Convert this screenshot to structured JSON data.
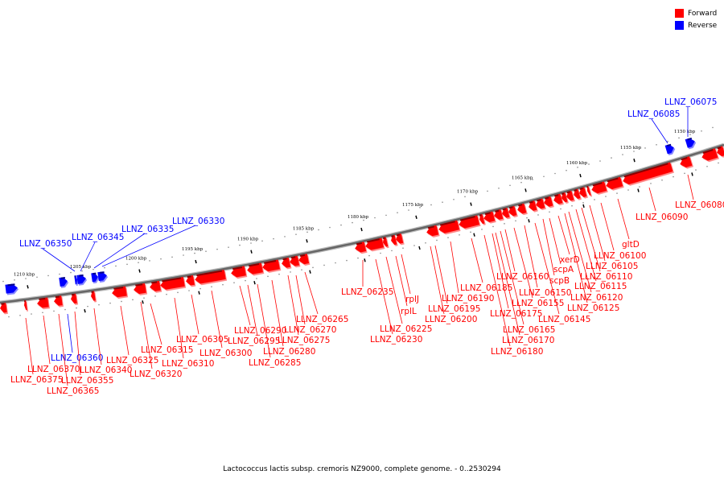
{
  "legend": {
    "forward": {
      "label": "Forward",
      "color": "#ff0000"
    },
    "reverse": {
      "label": "Reverse",
      "color": "#0000ff"
    }
  },
  "footer": "Lactococcus lactis subsp. cremoris NZ9000, complete genome. - 0..2530294",
  "ticks": [
    "1210 kbp",
    "1205 kbp",
    "1200 kbp",
    "1195 kbp",
    "1190 kbp",
    "1185 kbp",
    "1180 kbp",
    "1175 kbp",
    "1170 kbp",
    "1165 kbp",
    "1160 kbp",
    "1155 kbp",
    "1150 kbp"
  ],
  "gene_labels": [
    {
      "text": "LLNZ_06075",
      "strand": "reverse"
    },
    {
      "text": "LLNZ_06085",
      "strand": "reverse"
    },
    {
      "text": "LLNZ_06330",
      "strand": "reverse"
    },
    {
      "text": "LLNZ_06335",
      "strand": "reverse"
    },
    {
      "text": "LLNZ_06345",
      "strand": "reverse"
    },
    {
      "text": "LLNZ_06350",
      "strand": "reverse"
    },
    {
      "text": "LLNZ_06360",
      "strand": "reverse"
    },
    {
      "text": "LLNZ_06370",
      "strand": "forward"
    },
    {
      "text": "LLNZ_06375",
      "strand": "forward"
    },
    {
      "text": "LLNZ_06355",
      "strand": "forward"
    },
    {
      "text": "LLNZ_06365",
      "strand": "forward"
    },
    {
      "text": "LLNZ_06340",
      "strand": "forward"
    },
    {
      "text": "LLNZ_06325",
      "strand": "forward"
    },
    {
      "text": "LLNZ_06320",
      "strand": "forward"
    },
    {
      "text": "LLNZ_06315",
      "strand": "forward"
    },
    {
      "text": "LLNZ_06310",
      "strand": "forward"
    },
    {
      "text": "LLNZ_06305",
      "strand": "forward"
    },
    {
      "text": "LLNZ_06300",
      "strand": "forward"
    },
    {
      "text": "LLNZ_06290",
      "strand": "forward"
    },
    {
      "text": "LLNZ_06295",
      "strand": "forward"
    },
    {
      "text": "LLNZ_06285",
      "strand": "forward"
    },
    {
      "text": "LLNZ_06280",
      "strand": "forward"
    },
    {
      "text": "LLNZ_06275",
      "strand": "forward"
    },
    {
      "text": "LLNZ_06270",
      "strand": "forward"
    },
    {
      "text": "LLNZ_06265",
      "strand": "forward"
    },
    {
      "text": "LLNZ_06235",
      "strand": "forward"
    },
    {
      "text": "LLNZ_06230",
      "strand": "forward"
    },
    {
      "text": "LLNZ_06225",
      "strand": "forward"
    },
    {
      "text": "rplL",
      "strand": "forward"
    },
    {
      "text": "rplJ",
      "strand": "forward"
    },
    {
      "text": "LLNZ_06200",
      "strand": "forward"
    },
    {
      "text": "LLNZ_06195",
      "strand": "forward"
    },
    {
      "text": "LLNZ_06190",
      "strand": "forward"
    },
    {
      "text": "LLNZ_06185",
      "strand": "forward"
    },
    {
      "text": "LLNZ_06180",
      "strand": "forward"
    },
    {
      "text": "LLNZ_06175",
      "strand": "forward"
    },
    {
      "text": "LLNZ_06170",
      "strand": "forward"
    },
    {
      "text": "LLNZ_06165",
      "strand": "forward"
    },
    {
      "text": "LLNZ_06160",
      "strand": "forward"
    },
    {
      "text": "LLNZ_06155",
      "strand": "forward"
    },
    {
      "text": "LLNZ_06150",
      "strand": "forward"
    },
    {
      "text": "LLNZ_06145",
      "strand": "forward"
    },
    {
      "text": "scpB",
      "strand": "forward"
    },
    {
      "text": "scpA",
      "strand": "forward"
    },
    {
      "text": "xerD",
      "strand": "forward"
    },
    {
      "text": "LLNZ_06125",
      "strand": "forward"
    },
    {
      "text": "LLNZ_06120",
      "strand": "forward"
    },
    {
      "text": "LLNZ_06115",
      "strand": "forward"
    },
    {
      "text": "LLNZ_06110",
      "strand": "forward"
    },
    {
      "text": "LLNZ_06105",
      "strand": "forward"
    },
    {
      "text": "LLNZ_06100",
      "strand": "forward"
    },
    {
      "text": "gltD",
      "strand": "forward"
    },
    {
      "text": "LLNZ_06090",
      "strand": "forward"
    },
    {
      "text": "LLNZ_06080",
      "strand": "forward"
    }
  ]
}
